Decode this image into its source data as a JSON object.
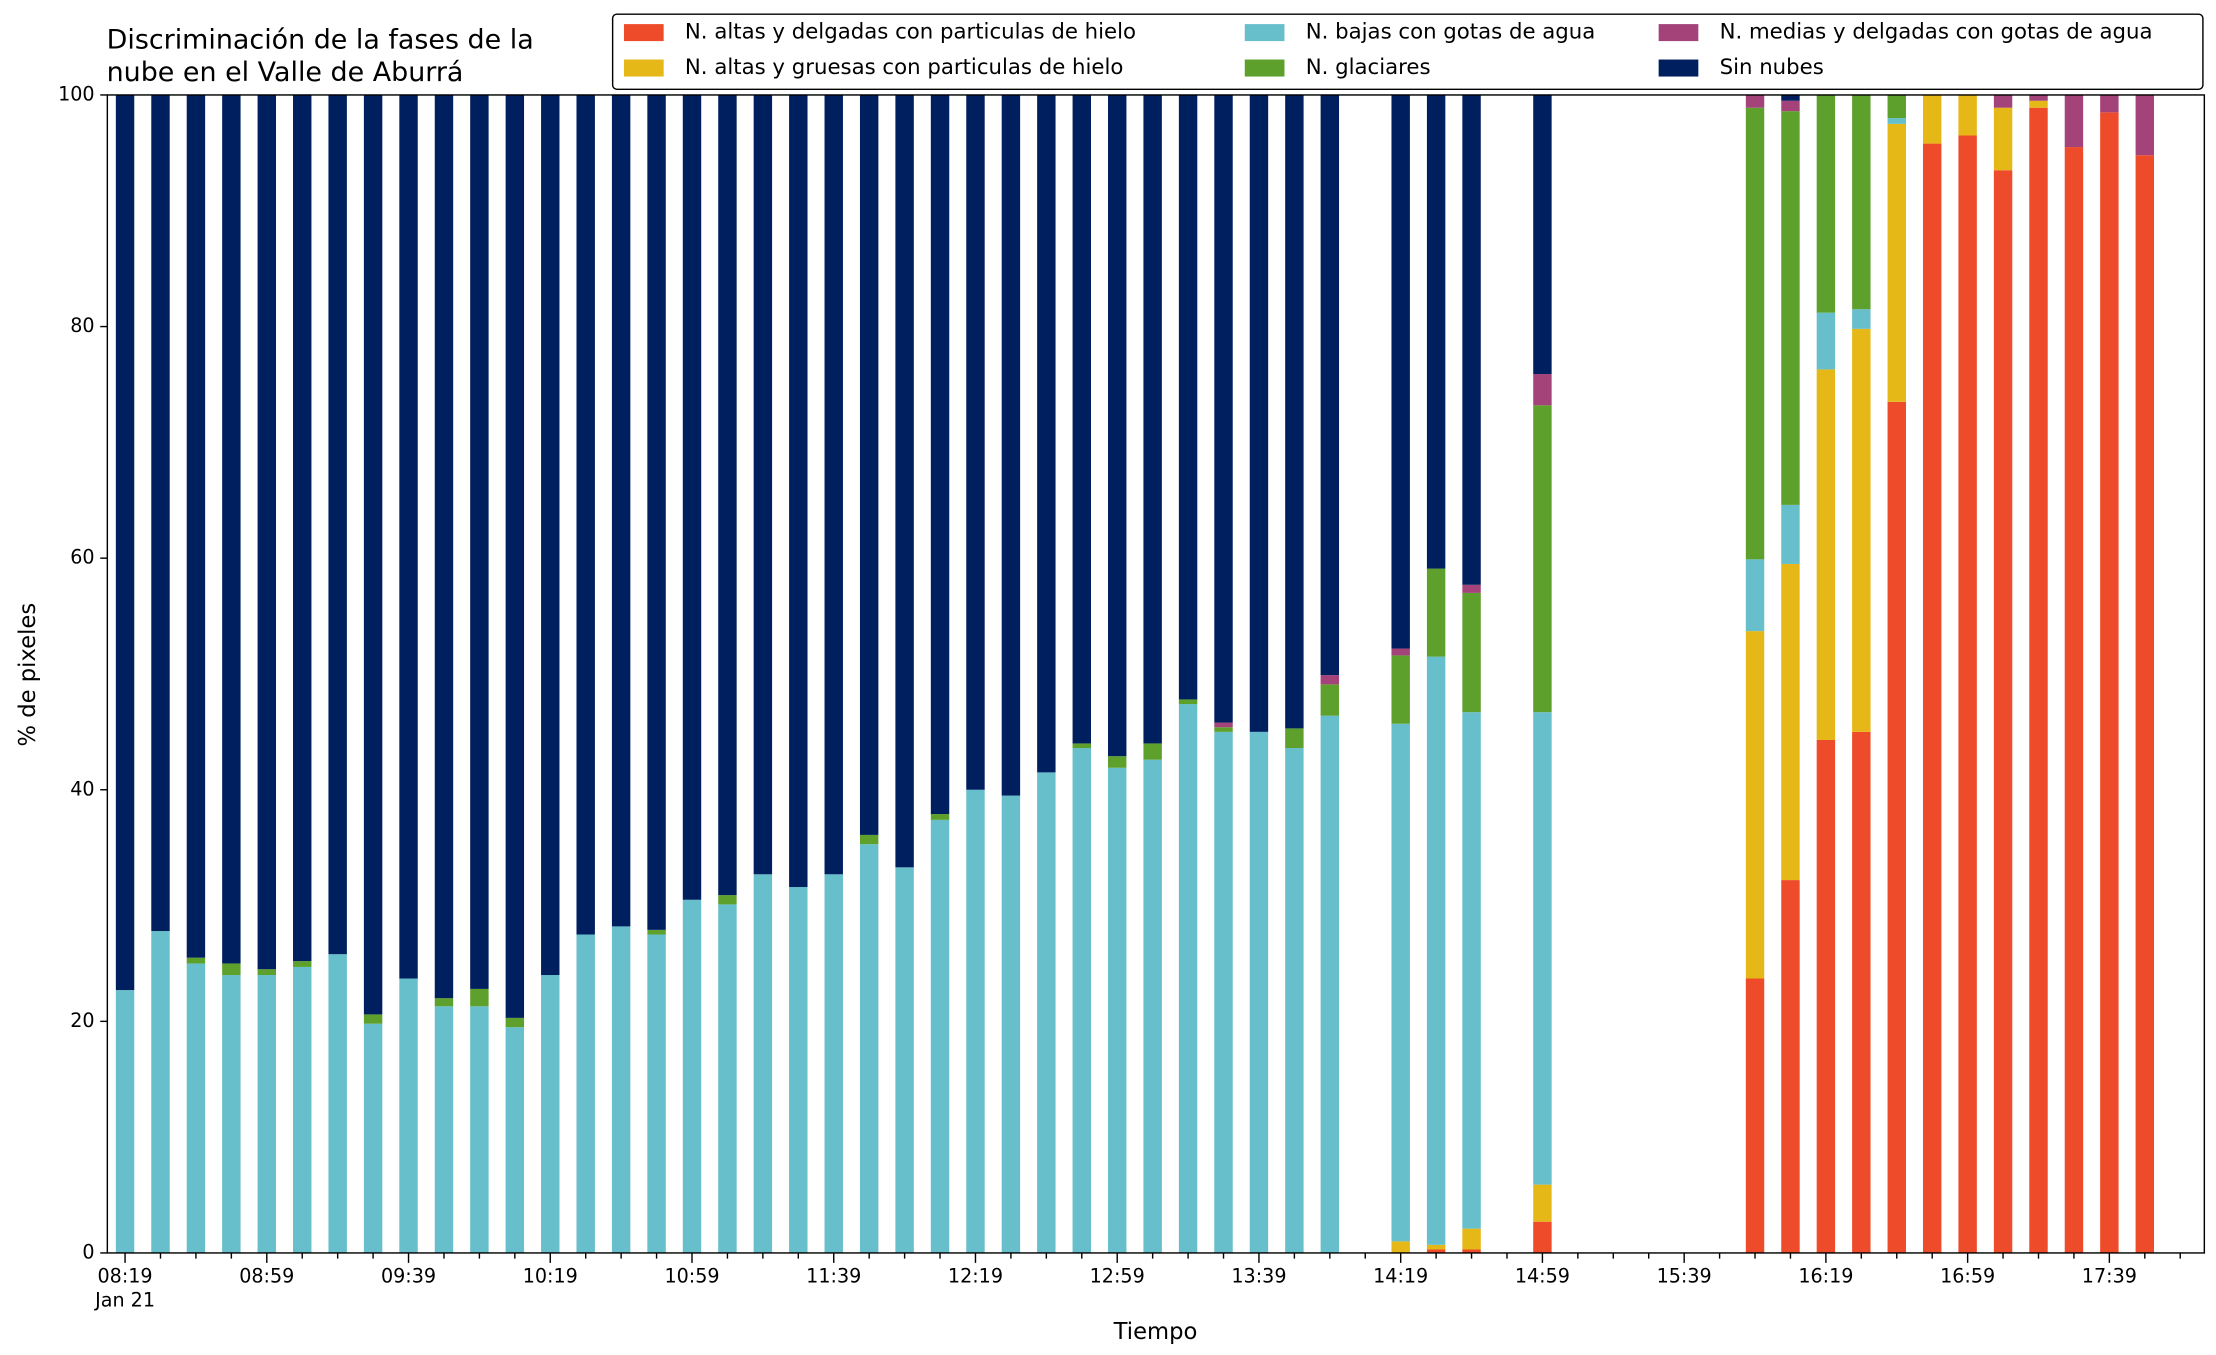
{
  "chart_data": {
    "type": "stacked_bar",
    "title": [
      "Discriminación de la fases de la",
      "nube en el Valle de Aburrá"
    ],
    "x_label": "Tiempo",
    "y_label": "% de pixeles",
    "x_date_label": "Jan 21",
    "categories": [
      "08:19",
      null,
      null,
      null,
      "08:59",
      null,
      null,
      null,
      "09:39",
      null,
      null,
      null,
      "10:19",
      null,
      null,
      null,
      "10:59",
      null,
      null,
      null,
      "11:39",
      null,
      null,
      null,
      "12:19",
      null,
      null,
      null,
      "12:59",
      null,
      null,
      null,
      "13:39",
      null,
      null,
      null,
      "14:19",
      null,
      null,
      null,
      "14:59",
      null,
      null,
      null,
      "15:39",
      null,
      null,
      null,
      "16:19",
      null,
      null,
      null,
      "16:59",
      null,
      null,
      null,
      "17:39",
      null,
      null
    ],
    "ylim": [
      0,
      100
    ],
    "yticks": [
      0,
      20,
      40,
      60,
      80,
      100
    ],
    "legend": "upper right",
    "series": [
      {
        "name": "N. altas y delgadas con particulas de hielo",
        "color": "#ee4b2b",
        "values": [
          0,
          0,
          0,
          0,
          0,
          0,
          0,
          0,
          0,
          0,
          0,
          0,
          0,
          0,
          0,
          0,
          0,
          0,
          0,
          0,
          0,
          0,
          0,
          0,
          0,
          0,
          0,
          0,
          0,
          0,
          0,
          0,
          0,
          0,
          0,
          null,
          0,
          0.3,
          0.3,
          null,
          2.7,
          null,
          null,
          null,
          null,
          null,
          23.7,
          32.2,
          44.3,
          45,
          73.5,
          95.8,
          96.5,
          93.5,
          98.9,
          95.5,
          98.5,
          94.8,
          null
        ]
      },
      {
        "name": "N. altas y gruesas con particulas de hielo",
        "color": "#e6b817",
        "values": [
          0,
          0,
          0,
          0,
          0,
          0,
          0,
          0,
          0,
          0,
          0,
          0,
          0,
          0,
          0,
          0,
          0,
          0,
          0,
          0,
          0,
          0,
          0,
          0,
          0,
          0,
          0,
          0,
          0,
          0,
          0,
          0,
          0,
          0,
          0,
          null,
          1.0,
          0.4,
          1.8,
          null,
          3.2,
          null,
          null,
          null,
          null,
          null,
          30,
          27.3,
          32,
          34.8,
          24,
          4.2,
          3.5,
          5.4,
          0.6,
          0,
          0,
          0,
          null
        ]
      },
      {
        "name": "N. bajas con gotas de agua",
        "color": "#66bfca",
        "values": [
          22.7,
          27.8,
          25,
          24,
          24,
          24.7,
          25.8,
          19.8,
          23.7,
          21.3,
          21.3,
          19.5,
          24,
          27.5,
          28.2,
          27.5,
          30.5,
          30.1,
          32.7,
          31.6,
          32.7,
          35.3,
          33.3,
          37.4,
          40,
          39.5,
          41.5,
          43.6,
          41.9,
          42.6,
          47.4,
          45,
          45,
          43.6,
          46.4,
          null,
          44.7,
          50.8,
          44.6,
          null,
          40.8,
          null,
          null,
          null,
          null,
          null,
          6.2,
          5.1,
          4.9,
          1.7,
          0.5,
          0,
          0,
          0,
          0,
          0,
          0,
          0,
          null
        ]
      },
      {
        "name": "N. glaciares",
        "color": "#5ea02c",
        "values": [
          0,
          0,
          0.5,
          1,
          0.5,
          0.5,
          0,
          0.8,
          0,
          0.7,
          1.5,
          0.8,
          0,
          0,
          0,
          0.4,
          0,
          0.8,
          0,
          0,
          0,
          0.8,
          0,
          0.5,
          0,
          0,
          0,
          0.4,
          1,
          1.4,
          0.4,
          0.4,
          0,
          1.7,
          2.7,
          null,
          5.9,
          7.6,
          10.3,
          null,
          26.5,
          null,
          null,
          null,
          null,
          null,
          39,
          34,
          18.8,
          18.5,
          2,
          0,
          0,
          0,
          0,
          0,
          0,
          0,
          null
        ]
      },
      {
        "name": "N. medias y delgadas con gotas de agua",
        "color": "#a3437a",
        "values": [
          0,
          0,
          0,
          0,
          0,
          0,
          0,
          0,
          0,
          0,
          0,
          0,
          0,
          0,
          0,
          0,
          0,
          0,
          0,
          0,
          0,
          0,
          0,
          0,
          0,
          0,
          0,
          0,
          0,
          0,
          0,
          0.4,
          0,
          0,
          0.8,
          null,
          0.6,
          0,
          0.7,
          null,
          2.7,
          null,
          null,
          null,
          null,
          null,
          1.1,
          0.9,
          0,
          0,
          0,
          0,
          0,
          1.1,
          0.5,
          4.5,
          1.5,
          5.2,
          null
        ]
      },
      {
        "name": "Sin nubes",
        "color": "#001f5f",
        "values": [
          77.3,
          72.2,
          74.5,
          75,
          75.5,
          74.8,
          74.2,
          79.4,
          76.3,
          78,
          77.2,
          79.7,
          76,
          72.5,
          71.8,
          72.1,
          69.5,
          69.1,
          67.3,
          68.4,
          67.3,
          63.9,
          66.7,
          62.1,
          60,
          60.5,
          58.5,
          56,
          57.1,
          56,
          52.2,
          54.2,
          55,
          54.7,
          50.1,
          null,
          47.8,
          40.9,
          42.3,
          null,
          24.1,
          null,
          null,
          null,
          null,
          null,
          0,
          0.5,
          0,
          0,
          0,
          0,
          0,
          0,
          0,
          0,
          0,
          0,
          null
        ]
      }
    ]
  }
}
